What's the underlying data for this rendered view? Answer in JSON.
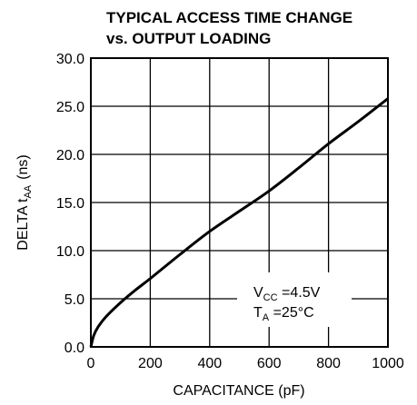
{
  "chart_data": {
    "type": "line",
    "title_line1": "TYPICAL ACCESS TIME CHANGE",
    "title_line2": "vs. OUTPUT LOADING",
    "xlabel": "CAPACITANCE (pF)",
    "ylabel_main": "DELTA t",
    "ylabel_sub": "AA",
    "ylabel_unit": "(ns)",
    "xlim": [
      0,
      1000
    ],
    "ylim": [
      0,
      30
    ],
    "x_ticks": [
      0,
      200,
      400,
      600,
      800,
      1000
    ],
    "x_tick_labels": [
      "0",
      "200",
      "400",
      "600",
      "800",
      "1000"
    ],
    "y_ticks": [
      0,
      5,
      10,
      15,
      20,
      25,
      30
    ],
    "y_tick_labels": [
      "0.0",
      "5.0",
      "10.0",
      "15.0",
      "20.0",
      "25.0",
      "30.0"
    ],
    "grid": true,
    "series": [
      {
        "x": [
          0,
          10,
          25,
          50,
          100,
          150,
          200,
          300,
          400,
          500,
          600,
          700,
          800,
          900,
          1000
        ],
        "y": [
          0,
          1.2,
          2.1,
          3.1,
          4.6,
          5.9,
          7.1,
          9.6,
          12.0,
          14.1,
          16.2,
          18.6,
          21.1,
          23.4,
          25.8
        ]
      }
    ],
    "annotations": {
      "vcc_main": "V",
      "vcc_sub": "CC",
      "vcc_value": " =4.5V",
      "ta_main": "T",
      "ta_sub": "A",
      "ta_value": " =25°C"
    }
  }
}
